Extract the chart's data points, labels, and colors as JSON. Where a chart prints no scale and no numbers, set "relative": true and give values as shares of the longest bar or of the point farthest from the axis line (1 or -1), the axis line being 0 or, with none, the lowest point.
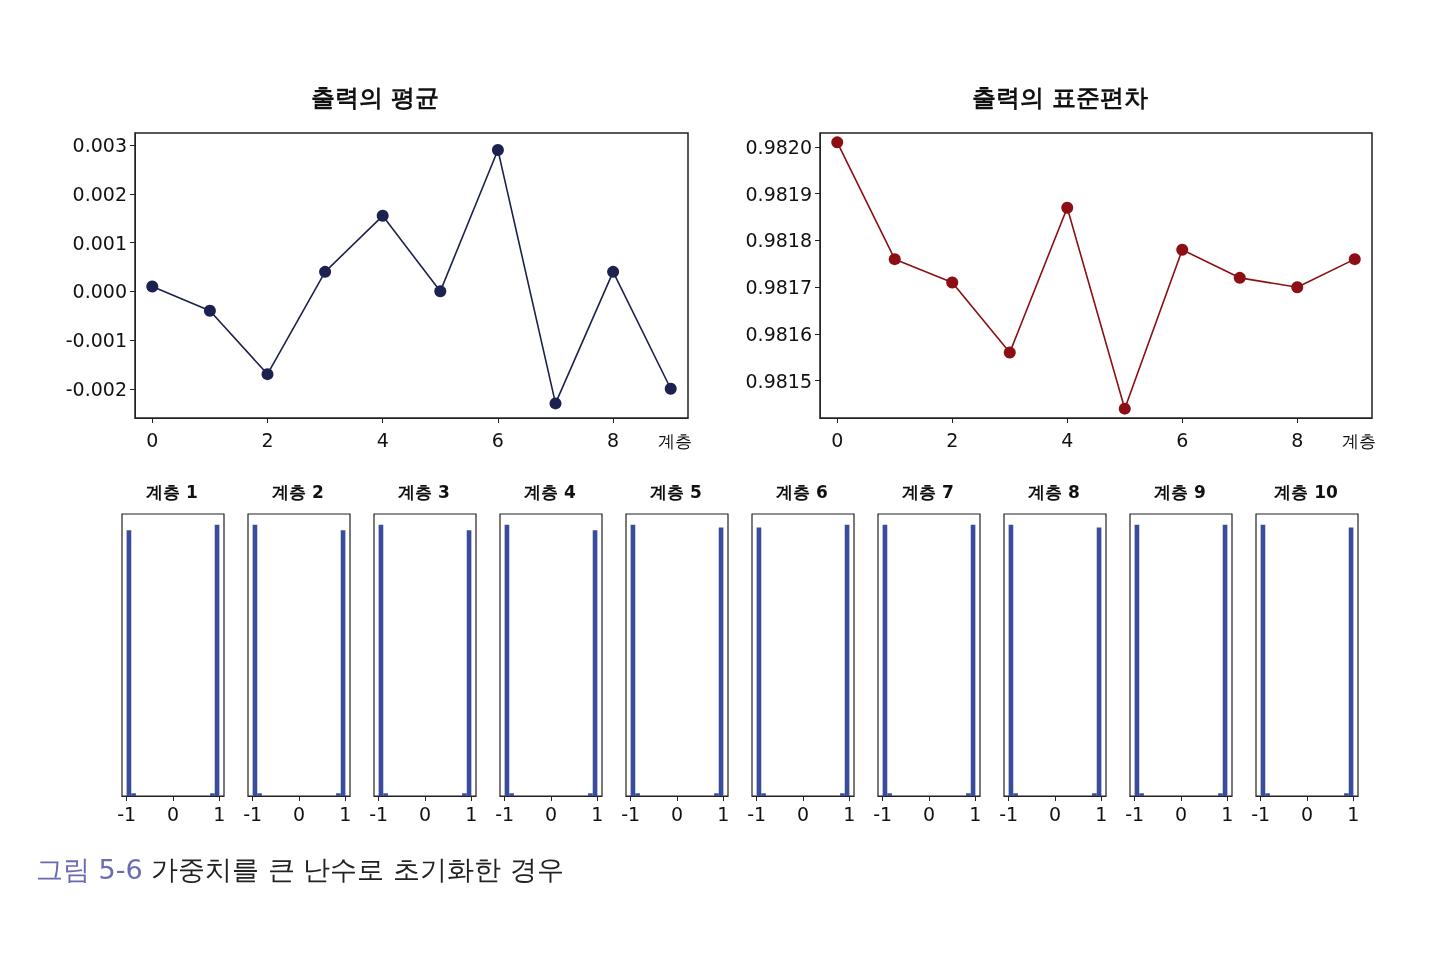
{
  "chart_data": [
    {
      "type": "line",
      "title": "출력의 평균",
      "xlabel": "계층",
      "x": [
        0,
        1,
        2,
        3,
        4,
        5,
        6,
        7,
        8,
        9
      ],
      "marker": "circle",
      "series": [
        {
          "color": "#1c2150",
          "values": [
            0.0001,
            -0.0004,
            -0.0017,
            0.0004,
            0.00155,
            0.0,
            0.0029,
            -0.0023,
            0.0004,
            -0.002
          ]
        }
      ],
      "xlim": [
        -0.3,
        9.3
      ],
      "xticks": [
        0,
        2,
        4,
        6,
        8
      ],
      "ylim": [
        -0.0026,
        0.00325
      ],
      "yticks": [
        -0.002,
        -0.001,
        {
          "value": 0,
          "label": "0.000"
        },
        0.001,
        0.002,
        0.003
      ],
      "annotations": [
        "그림 5-6 가중치를 큰 난수로 초기화한 경우"
      ]
    },
    {
      "type": "line",
      "title": "출력의 표준편차",
      "xlabel": "계층",
      "x": [
        0,
        1,
        2,
        3,
        4,
        5,
        6,
        7,
        8,
        9
      ],
      "marker": "circle",
      "series": [
        {
          "color": "#8b0f14",
          "values": [
            0.98201,
            0.98176,
            0.98171,
            0.98156,
            0.98187,
            0.98144,
            0.98178,
            0.98172,
            0.9817,
            0.98176
          ]
        }
      ],
      "xlim": [
        -0.3,
        9.3
      ],
      "xticks": [
        0,
        2,
        4,
        6,
        8
      ],
      "ylim": [
        0.98142,
        0.98203
      ],
      "yticks": [
        {
          "value": 0.9815,
          "label": "0.9815"
        },
        {
          "value": 0.9816,
          "label": "0.9816"
        },
        {
          "value": 0.9817,
          "label": "0.9817"
        },
        {
          "value": 0.9818,
          "label": "0.9818"
        },
        {
          "value": 0.9819,
          "label": "0.9819"
        },
        {
          "value": 0.982,
          "label": "0.9820"
        }
      ]
    },
    {
      "type": "bar",
      "title": "계층 1",
      "relative": true,
      "tick_labels": "x",
      "color": "#3a4c9c",
      "x": [
        -0.95,
        -0.85,
        0.85,
        0.95
      ],
      "values": [
        0.98,
        0.01,
        0.01,
        1
      ],
      "xlim": [
        -1.1,
        1.1
      ],
      "xticks": [
        -1,
        0,
        1
      ]
    },
    {
      "type": "bar",
      "title": "계층 2",
      "relative": true,
      "tick_labels": "x",
      "color": "#3a4c9c",
      "x": [
        -0.95,
        -0.85,
        0.85,
        0.95
      ],
      "values": [
        1,
        0.01,
        0.01,
        0.98
      ],
      "xlim": [
        -1.1,
        1.1
      ],
      "xticks": [
        -1,
        0,
        1
      ]
    },
    {
      "type": "bar",
      "title": "계층 3",
      "relative": true,
      "tick_labels": "x",
      "color": "#3a4c9c",
      "x": [
        -0.95,
        -0.85,
        0.85,
        0.95
      ],
      "values": [
        1,
        0.01,
        0.01,
        0.98
      ],
      "xlim": [
        -1.1,
        1.1
      ],
      "xticks": [
        -1,
        0,
        1
      ]
    },
    {
      "type": "bar",
      "title": "계층 4",
      "relative": true,
      "tick_labels": "x",
      "color": "#3a4c9c",
      "x": [
        -0.95,
        -0.85,
        0.85,
        0.95
      ],
      "values": [
        1,
        0.01,
        0.01,
        0.98
      ],
      "xlim": [
        -1.1,
        1.1
      ],
      "xticks": [
        -1,
        0,
        1
      ]
    },
    {
      "type": "bar",
      "title": "계층 5",
      "relative": true,
      "tick_labels": "x",
      "color": "#3a4c9c",
      "x": [
        -0.95,
        -0.85,
        0.85,
        0.95
      ],
      "values": [
        1,
        0.01,
        0.01,
        0.99
      ],
      "xlim": [
        -1.1,
        1.1
      ],
      "xticks": [
        -1,
        0,
        1
      ]
    },
    {
      "type": "bar",
      "title": "계층 6",
      "relative": true,
      "tick_labels": "x",
      "color": "#3a4c9c",
      "x": [
        -0.95,
        -0.85,
        0.85,
        0.95
      ],
      "values": [
        0.99,
        0.01,
        0.01,
        1
      ],
      "xlim": [
        -1.1,
        1.1
      ],
      "xticks": [
        -1,
        0,
        1
      ]
    },
    {
      "type": "bar",
      "title": "계층 7",
      "relative": true,
      "tick_labels": "x",
      "color": "#3a4c9c",
      "x": [
        -0.95,
        -0.85,
        0.85,
        0.95
      ],
      "values": [
        1,
        0.01,
        0.01,
        1
      ],
      "xlim": [
        -1.1,
        1.1
      ],
      "xticks": [
        -1,
        0,
        1
      ]
    },
    {
      "type": "bar",
      "title": "계층 8",
      "relative": true,
      "tick_labels": "x",
      "color": "#3a4c9c",
      "x": [
        -0.95,
        -0.85,
        0.85,
        0.95
      ],
      "values": [
        1,
        0.01,
        0.01,
        0.99
      ],
      "xlim": [
        -1.1,
        1.1
      ],
      "xticks": [
        -1,
        0,
        1
      ]
    },
    {
      "type": "bar",
      "title": "계층 9",
      "relative": true,
      "tick_labels": "x",
      "color": "#3a4c9c",
      "x": [
        -0.95,
        -0.85,
        0.85,
        0.95
      ],
      "values": [
        1,
        0.01,
        0.01,
        1
      ],
      "xlim": [
        -1.1,
        1.1
      ],
      "xticks": [
        -1,
        0,
        1
      ]
    },
    {
      "type": "bar",
      "title": "계층 10",
      "relative": true,
      "tick_labels": "x",
      "color": "#3a4c9c",
      "x": [
        -0.95,
        -0.85,
        0.85,
        0.95
      ],
      "values": [
        1,
        0.01,
        0.01,
        0.99
      ],
      "xlim": [
        -1.1,
        1.1
      ],
      "xticks": [
        -1,
        0,
        1
      ]
    }
  ]
}
